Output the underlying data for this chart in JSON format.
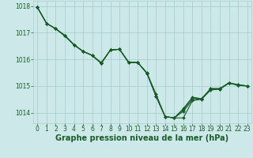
{
  "background_color": "#cce8e8",
  "grid_color": "#aacece",
  "line_color": "#1a5c28",
  "marker_color": "#1a5c28",
  "xlabel": "Graphe pression niveau de la mer (hPa)",
  "xlabel_fontsize": 7.0,
  "tick_fontsize": 5.5,
  "ylim": [
    1013.6,
    1018.2
  ],
  "xlim": [
    -0.5,
    23.5
  ],
  "yticks": [
    1014,
    1015,
    1016,
    1017,
    1018
  ],
  "xticks": [
    0,
    1,
    2,
    3,
    4,
    5,
    6,
    7,
    8,
    9,
    10,
    11,
    12,
    13,
    14,
    15,
    16,
    17,
    18,
    19,
    20,
    21,
    22,
    23
  ],
  "series": [
    [
      1017.95,
      1017.35,
      1017.15,
      1016.9,
      1016.55,
      1016.3,
      1016.15,
      1015.85,
      1016.35,
      1016.38,
      1015.9,
      1015.88,
      1015.5,
      1014.7,
      1013.85,
      1013.8,
      1013.8,
      1014.45,
      1014.5,
      1014.85,
      1014.88,
      1015.1,
      1015.05,
      1015.0
    ],
    [
      1017.95,
      1017.35,
      1017.15,
      1016.9,
      1016.55,
      1016.3,
      1016.15,
      1015.88,
      1016.35,
      1016.38,
      1015.88,
      1015.88,
      1015.48,
      1014.62,
      1013.85,
      1013.8,
      1014.05,
      1014.48,
      1014.52,
      1014.88,
      1014.88,
      1015.12,
      1015.05,
      1015.0
    ],
    [
      1017.95,
      1017.35,
      1017.15,
      1016.88,
      1016.55,
      1016.3,
      1016.15,
      1015.85,
      1016.35,
      1016.38,
      1015.88,
      1015.88,
      1015.48,
      1014.62,
      1013.85,
      1013.8,
      1014.1,
      1014.55,
      1014.52,
      1014.9,
      1014.9,
      1015.12,
      1015.02,
      1015.0
    ],
    [
      1017.95,
      1017.35,
      1017.15,
      1016.88,
      1016.55,
      1016.3,
      1016.15,
      1015.85,
      1016.35,
      1016.38,
      1015.88,
      1015.88,
      1015.48,
      1014.62,
      1013.85,
      1013.8,
      1014.15,
      1014.58,
      1014.52,
      1014.9,
      1014.9,
      1015.12,
      1015.02,
      1015.0
    ]
  ]
}
